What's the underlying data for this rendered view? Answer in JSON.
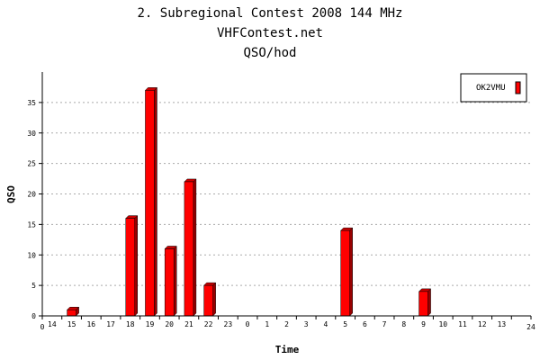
{
  "chart_data": {
    "type": "bar",
    "title": "2. Subregional Contest 2008 144 MHz",
    "subtitle": "VHFContest.net",
    "subtitle2": "QSO/hod",
    "xlabel": "Time",
    "ylabel": "QSO",
    "ylim": [
      0,
      40
    ],
    "yticks": [
      0,
      5,
      10,
      15,
      20,
      25,
      30,
      35
    ],
    "grid": true,
    "legend_position": "top-right",
    "x_edge_start": "0",
    "x_edge_end": "24",
    "categories": [
      "14",
      "15",
      "16",
      "17",
      "18",
      "19",
      "20",
      "21",
      "22",
      "23",
      "0",
      "1",
      "2",
      "3",
      "4",
      "5",
      "6",
      "7",
      "8",
      "9",
      "10",
      "11",
      "12",
      "13"
    ],
    "series": [
      {
        "name": "OK2VMU",
        "color": "#ff0000",
        "values": [
          0,
          1,
          0,
          0,
          16,
          37,
          11,
          22,
          5,
          0,
          0,
          0,
          0,
          0,
          0,
          14,
          0,
          0,
          0,
          4,
          0,
          0,
          0,
          0
        ]
      }
    ]
  }
}
